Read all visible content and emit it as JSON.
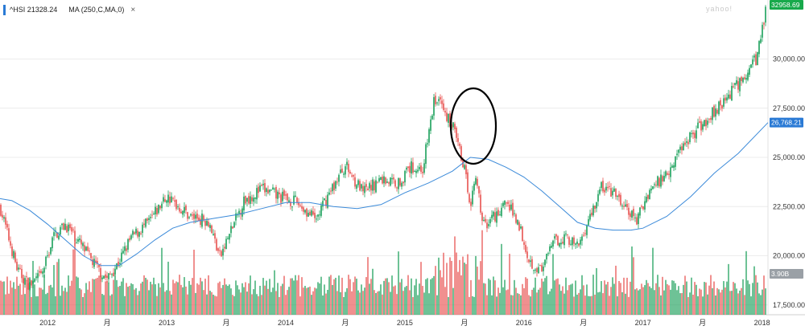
{
  "header": {
    "symbol": "^HSI",
    "last": "21328.24",
    "indicator": "MA (250,C,MA,0)",
    "close_glyph": "×",
    "watermark": "yahoo!"
  },
  "chart_data": {
    "type": "candlestick",
    "title": "",
    "xlabel": "",
    "ylabel": "",
    "ylim": [
      17000,
      33000
    ],
    "y_ticks": [
      17500,
      20000,
      22500,
      25000,
      27500,
      30000
    ],
    "y_tick_labels": [
      "17,500.00",
      "20,000.00",
      "22,500.00",
      "25,000.00",
      "27,500.00",
      "30,000.00"
    ],
    "x_range": [
      2011.6,
      2018.05
    ],
    "x_ticks": [
      {
        "x": 2012.0,
        "label": "2012"
      },
      {
        "x": 2012.5,
        "label": "月"
      },
      {
        "x": 2013.0,
        "label": "2013"
      },
      {
        "x": 2013.5,
        "label": "月"
      },
      {
        "x": 2014.0,
        "label": "2014"
      },
      {
        "x": 2014.5,
        "label": "月"
      },
      {
        "x": 2015.0,
        "label": "2015"
      },
      {
        "x": 2015.5,
        "label": "月"
      },
      {
        "x": 2016.0,
        "label": "2016"
      },
      {
        "x": 2016.5,
        "label": "月"
      },
      {
        "x": 2017.0,
        "label": "2017"
      },
      {
        "x": 2017.5,
        "label": "月"
      },
      {
        "x": 2018.0,
        "label": "2018"
      }
    ],
    "price_series": {
      "name": "^HSI",
      "x": [
        2011.6,
        2011.75,
        2011.85,
        2011.95,
        2012.05,
        2012.15,
        2012.25,
        2012.4,
        2012.5,
        2012.6,
        2012.7,
        2012.85,
        2013.0,
        2013.1,
        2013.2,
        2013.35,
        2013.45,
        2013.52,
        2013.65,
        2013.8,
        2013.95,
        2014.1,
        2014.25,
        2014.35,
        2014.5,
        2014.65,
        2014.8,
        2014.95,
        2015.05,
        2015.15,
        2015.25,
        2015.3,
        2015.4,
        2015.5,
        2015.55,
        2015.6,
        2015.65,
        2015.75,
        2015.85,
        2015.95,
        2016.05,
        2016.15,
        2016.25,
        2016.35,
        2016.45,
        2016.55,
        2016.65,
        2016.75,
        2016.85,
        2016.95,
        2017.05,
        2017.2,
        2017.35,
        2017.5,
        2017.65,
        2017.8,
        2017.95,
        2018.05
      ],
      "y": [
        22500,
        19200,
        18500,
        19000,
        21000,
        21600,
        20800,
        19500,
        18800,
        19700,
        20900,
        21700,
        23000,
        22500,
        22000,
        21800,
        19900,
        21000,
        22800,
        23400,
        23000,
        22700,
        21800,
        23000,
        24600,
        23200,
        23900,
        23700,
        24500,
        24400,
        28000,
        27700,
        26600,
        24500,
        22700,
        24200,
        21500,
        22000,
        22700,
        21800,
        19700,
        19200,
        20700,
        21000,
        20400,
        21900,
        23500,
        23200,
        22400,
        21800,
        23300,
        24200,
        25800,
        26700,
        27700,
        28700,
        30000,
        32958.69
      ]
    },
    "ma_series": {
      "name": "MA (250,C,MA,0)",
      "x": [
        2011.6,
        2011.7,
        2011.85,
        2012.0,
        2012.15,
        2012.3,
        2012.45,
        2012.6,
        2012.75,
        2012.9,
        2013.05,
        2013.2,
        2013.4,
        2013.6,
        2013.8,
        2014.0,
        2014.2,
        2014.4,
        2014.6,
        2014.8,
        2015.0,
        2015.2,
        2015.4,
        2015.55,
        2015.7,
        2015.85,
        2016.0,
        2016.15,
        2016.3,
        2016.45,
        2016.6,
        2016.75,
        2016.9,
        2017.0,
        2017.2,
        2017.4,
        2017.6,
        2017.8,
        2018.05
      ],
      "y": [
        22900,
        22800,
        22300,
        21600,
        20800,
        20000,
        19500,
        19500,
        20100,
        20800,
        21400,
        21700,
        21900,
        22100,
        22400,
        22700,
        22700,
        22500,
        22400,
        22600,
        23200,
        23700,
        24300,
        25000,
        24900,
        24500,
        24000,
        23300,
        22500,
        21700,
        21400,
        21300,
        21300,
        21400,
        22000,
        23000,
        24200,
        25200,
        26768.21
      ]
    },
    "price_label": "32958.69",
    "ma_label": "26,768.21",
    "volume_label": "3.90B",
    "colors": {
      "up": "#19a05a",
      "down": "#e8514f",
      "ma": "#3b8ad9",
      "price_badge": "#18a94b",
      "ma_badge": "#2a7ad5",
      "volume_badge": "#9aa0a6"
    },
    "annotation": "ellipse around the mid-2015 sell-off"
  }
}
